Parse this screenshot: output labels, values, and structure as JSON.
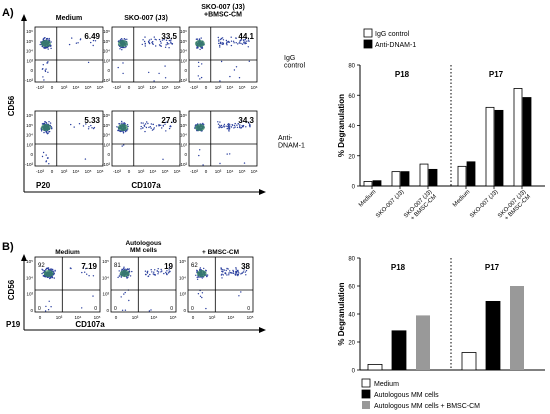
{
  "panelA": {
    "label": "A)",
    "columns": [
      "Medium",
      "SKO-007 (J3)",
      "SKO-007 (J3)\n+BMSC-CM"
    ],
    "rows": [
      "IgG\ncontrol",
      "Anti-\nDNAM-1"
    ],
    "quadrant_values": [
      [
        "6.49",
        "33.5",
        "44.1"
      ],
      [
        "5.33",
        "27.6",
        "34.3"
      ]
    ],
    "y_axis": "CD56",
    "patient": "P20",
    "x_axis": "CD107a",
    "y_ticks": [
      "10⁶",
      "10⁵",
      "10⁴",
      "10³",
      "0",
      "-10³"
    ],
    "x_ticks": [
      "-10³",
      "0",
      "10³",
      "10⁴",
      "10⁵",
      "10⁶"
    ]
  },
  "panelB": {
    "label": "B)",
    "columns": [
      "Medium",
      "Autologous\nMM cells",
      "+ BMSC-CM"
    ],
    "quadrant_values": [
      "7.19",
      "19",
      "38"
    ],
    "upper_left_values": [
      "92",
      "81",
      "62"
    ],
    "y_axis": "CD56",
    "patient": "P19",
    "x_axis": "CD107a",
    "y_ticks": [
      "10⁵",
      "10⁴",
      "10³",
      "0"
    ],
    "x_ticks": [
      "0",
      "10³",
      "10⁴",
      "10⁵"
    ]
  },
  "colors": {
    "white_bar": "#ffffff",
    "black_bar": "#000000",
    "gray_bar": "#999999",
    "dots": "#2a3f9e"
  },
  "chart_data": [
    {
      "type": "bar",
      "legend": [
        "IgG control",
        "Anti-DNAM-1"
      ],
      "legend_position": "top-right",
      "ylabel": "% Degranulation",
      "ylim": [
        0,
        80
      ],
      "yticks": [
        0,
        20,
        40,
        60,
        80
      ],
      "groups": [
        {
          "title": "P18",
          "categories": [
            "Medium",
            "SKO-007 (J3)",
            "SKO-007 (J3)\n+ BMSC-CM"
          ],
          "series": [
            {
              "name": "IgG control",
              "values": [
                3,
                9.5,
                14.5
              ]
            },
            {
              "name": "Anti-DNAM-1",
              "values": [
                3.5,
                9.5,
                11
              ]
            }
          ]
        },
        {
          "title": "P17",
          "categories": [
            "Medium",
            "SKO-007 (J3)",
            "SKO-007 (J3)\n+ BMSC-CM"
          ],
          "series": [
            {
              "name": "IgG control",
              "values": [
                13,
                52,
                64.5
              ]
            },
            {
              "name": "Anti-DNAM-1",
              "values": [
                16,
                50,
                58.5
              ]
            }
          ]
        }
      ],
      "grid": false
    },
    {
      "type": "bar",
      "legend": [
        "Medium",
        "Autologous MM cells",
        "Autologous MM cells + BMSC-CM"
      ],
      "legend_position": "bottom",
      "ylabel": "% Degranulation",
      "ylim": [
        0,
        80
      ],
      "yticks": [
        0,
        20,
        40,
        60,
        80
      ],
      "groups": [
        {
          "title": "P18",
          "values": [
            4,
            28,
            39
          ]
        },
        {
          "title": "P17",
          "values": [
            12.5,
            49,
            60
          ]
        }
      ],
      "grid": false
    }
  ]
}
